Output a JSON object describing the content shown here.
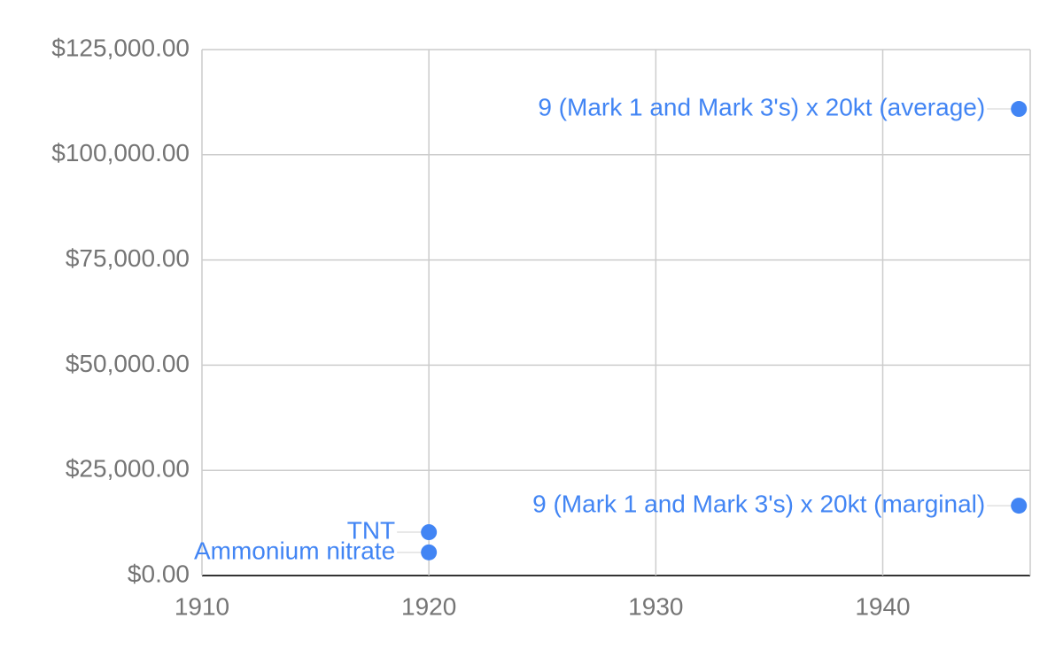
{
  "chart_data": {
    "type": "scatter",
    "x": [
      1920,
      1920,
      1946,
      1946
    ],
    "values": [
      10300,
      5500,
      110900,
      16600
    ],
    "point_labels": [
      "TNT",
      "Ammonium nitrate",
      "9 (Mark 1 and Mark 3's) x 20kt (average)",
      "9 (Mark 1 and Mark 3's) x 20kt (marginal)"
    ],
    "color": "#4285f4",
    "xlim": [
      1910,
      1946.5
    ],
    "xticks": [
      1910,
      1920,
      1930,
      1940
    ],
    "ylim": [
      0,
      125000
    ],
    "yticks": [
      {
        "value": 0,
        "label": "$0.00"
      },
      {
        "value": 25000,
        "label": "$25,000.00"
      },
      {
        "value": 50000,
        "label": "$50,000.00"
      },
      {
        "value": 75000,
        "label": "$75,000.00"
      },
      {
        "value": 100000,
        "label": "$100,000.00"
      },
      {
        "value": 125000,
        "label": "$125,000.00"
      }
    ],
    "grid": true
  }
}
